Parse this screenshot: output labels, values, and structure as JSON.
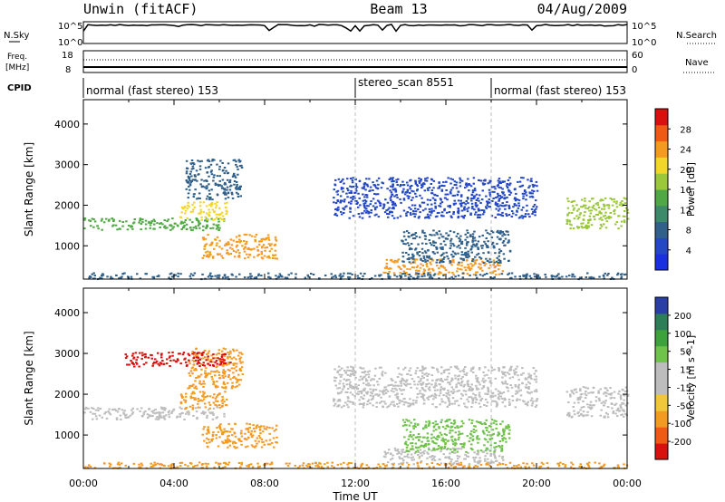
{
  "header": {
    "station": "Unwin (fitACF)",
    "beam": "Beam 13",
    "date": "04/Aug/2009"
  },
  "strips": {
    "nsky_label": "N.Sky",
    "nsky_ticks": [
      "10^5",
      "10^0"
    ],
    "nsearch_label": "N.Search",
    "freq_label": "Freq.",
    "freq_unit": "[MHz]",
    "freq_ticks": [
      "18",
      "8"
    ],
    "nave_label": "Nave",
    "nave_ticks": [
      "60",
      "0"
    ],
    "cpid_label": "CPID",
    "cpid_segments": [
      {
        "label": "normal (fast stereo) 153",
        "start_hour": 0,
        "end_hour": 12
      },
      {
        "label": "stereo_scan 8551",
        "start_hour": 12,
        "end_hour": 18
      },
      {
        "label": "normal (fast stereo) 153",
        "start_hour": 18,
        "end_hour": 24
      }
    ]
  },
  "colors": {
    "power_scale": [
      "#1a2fe0",
      "#2448c4",
      "#31608a",
      "#3d8a6a",
      "#4fa844",
      "#9bc83a",
      "#f2d62a",
      "#f49a20",
      "#ef5a14",
      "#d8100e"
    ],
    "velocity_scale": [
      "#d8100e",
      "#ef5a14",
      "#f39a22",
      "#f0c63a",
      "#bdbdbd",
      "#bdbdbd",
      "#6fc24a",
      "#3ca23c",
      "#2c7e58",
      "#2a3ea8"
    ],
    "ground_scatter": "#bdbdbd",
    "dashed_line": "#bcbcbc"
  },
  "chart_data": [
    {
      "type": "heatmap",
      "title": "",
      "xlabel": "Time UT",
      "ylabel": "Slant Range [km]",
      "xlim": [
        0,
        24
      ],
      "ylim": [
        180,
        4600
      ],
      "x_ticks": [
        "00:00",
        "04:00",
        "08:00",
        "12:00",
        "16:00",
        "20:00",
        "00:00"
      ],
      "y_ticks": [
        "1000",
        "2000",
        "3000",
        "4000"
      ],
      "colorbar_label": "Power [dB]",
      "colorbar_ticks": [
        "4",
        "8",
        "12",
        "16",
        "20",
        "24",
        "28"
      ],
      "colorbar_range": [
        0,
        30
      ],
      "regions": [
        {
          "name": "band_morning",
          "t0": 0.0,
          "t1": 6.2,
          "r0": 1400,
          "r1": 1700,
          "level": 14
        },
        {
          "name": "band_morning_rise",
          "t0": 4.2,
          "t1": 6.3,
          "r0": 1650,
          "r1": 2100,
          "level": 19
        },
        {
          "name": "patch_early",
          "t0": 4.5,
          "t1": 7.0,
          "r0": 2150,
          "r1": 3150,
          "level": 6
        },
        {
          "name": "sporadic_e",
          "t0": 5.2,
          "t1": 8.5,
          "r0": 700,
          "r1": 1300,
          "level": 24
        },
        {
          "name": "arc_midday",
          "t0": 11.0,
          "t1": 20.0,
          "r0": 1700,
          "r1": 2700,
          "level": 4
        },
        {
          "name": "evening_e",
          "t0": 13.2,
          "t1": 18.5,
          "r0": 300,
          "r1": 700,
          "level": 22
        },
        {
          "name": "evening_mid",
          "t0": 14.0,
          "t1": 18.8,
          "r0": 600,
          "r1": 1400,
          "level": 6
        },
        {
          "name": "band_night",
          "t0": 21.3,
          "t1": 24.0,
          "r0": 1450,
          "r1": 2200,
          "level": 16
        },
        {
          "name": "near_range",
          "t0": 0.0,
          "t1": 24.0,
          "r0": 200,
          "r1": 350,
          "level": 5
        }
      ]
    },
    {
      "type": "heatmap",
      "title": "",
      "xlabel": "Time UT",
      "ylabel": "Slant Range [km]",
      "xlim": [
        0,
        24
      ],
      "ylim": [
        180,
        4600
      ],
      "x_ticks": [
        "00:00",
        "04:00",
        "08:00",
        "12:00",
        "16:00",
        "20:00",
        "00:00"
      ],
      "y_ticks": [
        "1000",
        "2000",
        "3000",
        "4000"
      ],
      "colorbar_label": "Velocity [m s^-1]",
      "colorbar_ticks": [
        "200",
        "100",
        "50",
        "15",
        "-15",
        "-50",
        "-100",
        "-200"
      ],
      "colorbar_range": [
        -250,
        250
      ],
      "regions": [
        {
          "name": "band_morning",
          "t0": 0.0,
          "t1": 6.2,
          "r0": 1400,
          "r1": 1700,
          "level": 0
        },
        {
          "name": "band_morning_rise",
          "t0": 4.2,
          "t1": 6.3,
          "r0": 1650,
          "r1": 2100,
          "level": -30
        },
        {
          "name": "patch_early",
          "t0": 4.5,
          "t1": 7.0,
          "r0": 2150,
          "r1": 3150,
          "level": -40
        },
        {
          "name": "red_patch",
          "t0": 1.8,
          "t1": 6.5,
          "r0": 2700,
          "r1": 3050,
          "level": -180
        },
        {
          "name": "sporadic_e",
          "t0": 5.2,
          "t1": 8.5,
          "r0": 700,
          "r1": 1300,
          "level": -70
        },
        {
          "name": "arc_midday",
          "t0": 11.0,
          "t1": 20.0,
          "r0": 1700,
          "r1": 2700,
          "level": 0
        },
        {
          "name": "evening_e",
          "t0": 13.2,
          "t1": 18.5,
          "r0": 300,
          "r1": 700,
          "level": 5
        },
        {
          "name": "evening_mid",
          "t0": 14.0,
          "t1": 18.8,
          "r0": 600,
          "r1": 1400,
          "level": 40
        },
        {
          "name": "band_night",
          "t0": 21.3,
          "t1": 24.0,
          "r0": 1450,
          "r1": 2200,
          "level": 0
        },
        {
          "name": "near_range",
          "t0": 0.0,
          "t1": 24.0,
          "r0": 200,
          "r1": 350,
          "level": -60
        }
      ]
    }
  ]
}
